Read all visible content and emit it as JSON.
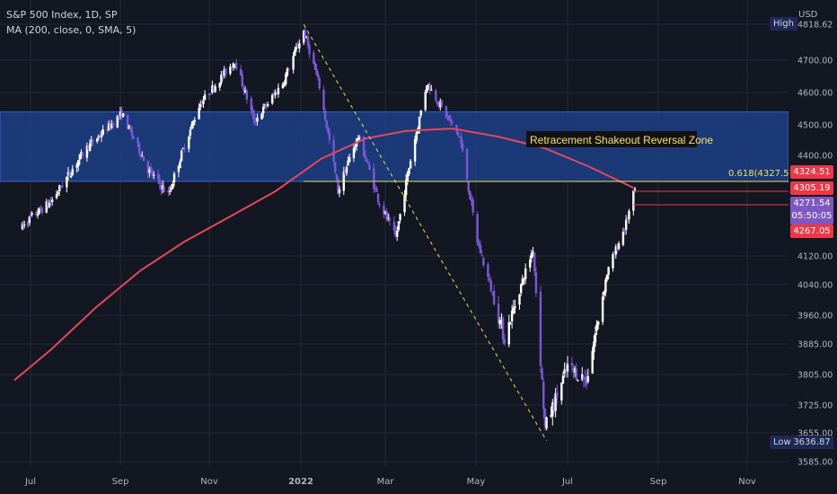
{
  "legend": {
    "symbol": "S&P 500 Index, 1D, SP",
    "indicator": "MA (200, close, 0, SMA, 5)"
  },
  "price_axis": {
    "currency": "USD",
    "ticks": [
      "4818.62",
      "4700.00",
      "4600.00",
      "4500.00",
      "4400.00",
      "4120.00",
      "4040.00",
      "3960.00",
      "3885.00",
      "3805.00",
      "3725.00",
      "3655.00",
      "3585.00"
    ]
  },
  "time_axis": {
    "ticks": [
      "Jul",
      "Sep",
      "Nov",
      "2022",
      "Mar",
      "May",
      "Jul",
      "Sep",
      "Nov"
    ]
  },
  "tags": {
    "high_label": "High",
    "low_label": "Low",
    "low_value": "3636.87",
    "t1": "4324.51",
    "t2": "4305.19",
    "current": "4271.54",
    "countdown": "05:50:05",
    "t4": "4267.05"
  },
  "annotations": {
    "zone_label": "Retracement Shakeout Reversal Zone",
    "fib_label": "0.618(4327.57)"
  },
  "colors": {
    "background": "#131722",
    "zone": "#1e3f86",
    "ma": "#e5475c",
    "fib": "#e8e05a",
    "candle_up": "#ffffff",
    "candle_down": "#7b57d6",
    "tag_red": "#f23645",
    "tag_purple": "#7e57c2",
    "tag_navy": "#1e2a55"
  },
  "chart_data": {
    "type": "candlestick",
    "title": "S&P 500 Index, 1D, SP",
    "ylim": [
      3585,
      4830
    ],
    "series": [
      {
        "name": "S&P 500 Index",
        "x": [
          "2021-06-23",
          "2021-07-15",
          "2021-08-10",
          "2021-09-02",
          "2021-09-20",
          "2021-10-04",
          "2021-10-25",
          "2021-11-18",
          "2021-12-01",
          "2021-12-20",
          "2022-01-03",
          "2022-01-14",
          "2022-01-27",
          "2022-02-10",
          "2022-02-24",
          "2022-03-08",
          "2022-03-29",
          "2022-04-20",
          "2022-05-02",
          "2022-05-20",
          "2022-06-08",
          "2022-06-16",
          "2022-07-01",
          "2022-07-14",
          "2022-07-28",
          "2022-08-10",
          "2022-08-16"
        ],
        "close": [
          4200,
          4270,
          4430,
          4535,
          4360,
          4290,
          4560,
          4700,
          4510,
          4630,
          4796,
          4620,
          4300,
          4460,
          4280,
          4170,
          4630,
          4460,
          4160,
          3900,
          4140,
          3666,
          3825,
          3790,
          4072,
          4210,
          4305
        ]
      }
    ],
    "indicators": [
      {
        "name": "MA (200, close, 0, SMA, 5)",
        "x": [
          "2021-06-15",
          "2021-07-15",
          "2021-08-15",
          "2021-09-15",
          "2021-10-15",
          "2021-11-15",
          "2021-12-15",
          "2022-01-15",
          "2022-02-15",
          "2022-03-15",
          "2022-04-15",
          "2022-05-15",
          "2022-06-15",
          "2022-07-15",
          "2022-08-15"
        ],
        "values": [
          3790,
          3870,
          3980,
          4080,
          4160,
          4230,
          4300,
          4390,
          4455,
          4480,
          4488,
          4462,
          4425,
          4370,
          4310
        ]
      }
    ],
    "lines": [
      {
        "name": "trendline",
        "from": [
          "2022-01-03",
          4818
        ],
        "to": [
          "2022-06-17",
          3636
        ]
      },
      {
        "name": "fib 0.618",
        "value": 4327.57
      }
    ],
    "zone": {
      "label": "Retracement Shakeout Reversal Zone",
      "from": 4327.57,
      "to": 4540
    },
    "high": 4818.62,
    "low": 3636.87
  }
}
